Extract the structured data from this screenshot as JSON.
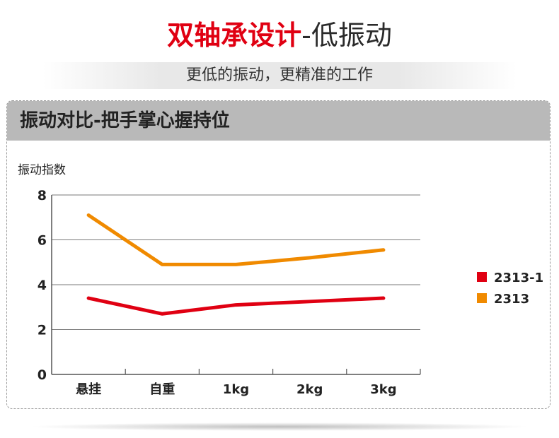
{
  "header": {
    "title_red": "双轴承设计",
    "title_dark": "-低振动",
    "subtitle": "更低的振动，更精准的工作"
  },
  "panel": {
    "title": "振动对比-把手掌心握持位"
  },
  "chart_data": {
    "type": "line",
    "title": "",
    "xlabel": "",
    "ylabel": "振动指数",
    "categories": [
      "悬挂",
      "自重",
      "1kg",
      "2kg",
      "3kg"
    ],
    "ylim": [
      0,
      8
    ],
    "yticks": [
      0,
      2,
      4,
      6,
      8
    ],
    "grid": true,
    "legend_position": "right",
    "series": [
      {
        "name": "2313-1",
        "color": "#e00012",
        "values": [
          3.4,
          2.7,
          3.1,
          3.25,
          3.4
        ]
      },
      {
        "name": "2313",
        "color": "#f08a00",
        "values": [
          7.1,
          4.9,
          4.9,
          5.2,
          5.55
        ]
      }
    ]
  }
}
